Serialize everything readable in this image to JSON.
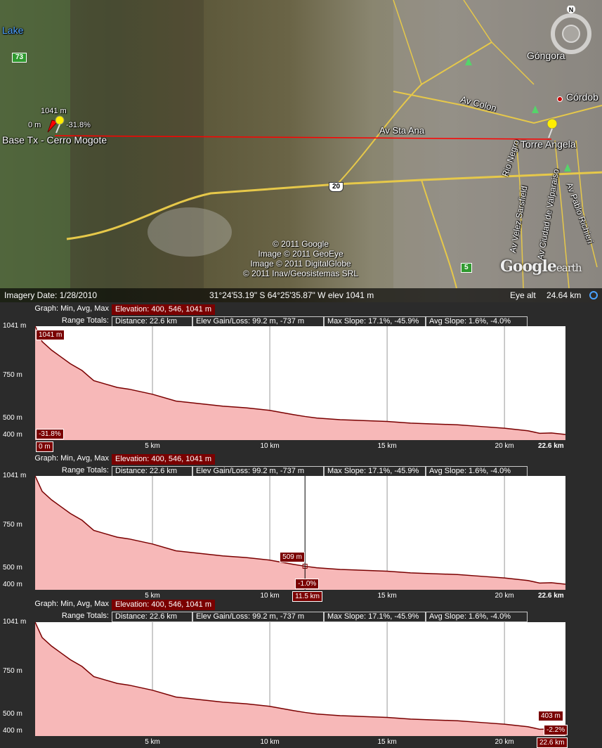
{
  "map": {
    "labels": {
      "lake": "Lake",
      "route73": "73",
      "route20": "20",
      "route5": "5",
      "gongora": "Góngora",
      "cordoba": "Córdob",
      "av_colon": "Av Colon",
      "av_sta_ana": "Av Sta Ana",
      "rio_negro": "Rio Negro",
      "av_velez": "Av Velez Sarsfield",
      "av_valparaiso": "Av Ciudad de Valparaiso",
      "av_richieri": "Av Pablo Richieri",
      "torre_angela": "Torre Angela",
      "base_tx": "Base Tx - Cerro Mogote",
      "start_elev": "1041 m",
      "start_dist": "0 m",
      "start_slope": "-31.8%",
      "compass_n": "N"
    },
    "copyright": [
      "© 2011 Google",
      "Image © 2011 GeoEye",
      "Image © 2011 DigitalGlobe",
      "© 2011 Inav/Geosistemas SRL"
    ],
    "logo": "Google",
    "logo_suffix": "earth",
    "colors": {
      "route_line": "#ff0000",
      "road": "#e6c84a"
    }
  },
  "status": {
    "imagery_date": "Imagery Date: 1/28/2010",
    "coords": "31°24'53.19\" S   64°25'35.87\" W  elev  1041 m",
    "eye_alt_label": "Eye alt",
    "eye_alt_value": "24.64 km"
  },
  "profile": {
    "graph_label": "Graph: Min, Avg, Max",
    "elevation": "Elevation: 400, 546, 1041 m",
    "range_label": "Range Totals:",
    "distance": "Distance: 22.6 km",
    "gain_loss": "Elev Gain/Loss: 99.2 m, -737 m",
    "max_slope": "Max Slope: 17.1%, -45.9%",
    "avg_slope": "Avg Slope: 1.6%, -4.0%",
    "y_ticks": [
      "1041 m",
      "750 m",
      "500 m",
      "400 m"
    ],
    "x_ticks": [
      "5 km",
      "10 km",
      "15 km",
      "20 km"
    ],
    "x_end": "22.6 km",
    "panel1": {
      "elev": "1041 m",
      "slope": "-31.8%",
      "dist": "0 m"
    },
    "panel2": {
      "elev": "509 m",
      "slope": "-1.0%",
      "dist": "11.5 km"
    },
    "panel3": {
      "elev": "403 m",
      "slope": "-2.2%",
      "dist": "22.6 km"
    }
  },
  "chart_data": {
    "type": "area",
    "xlabel": "",
    "ylabel": "",
    "xlim": [
      0,
      22.6
    ],
    "ylim": [
      370,
      1041
    ],
    "x": [
      0,
      0.3,
      0.7,
      1.1,
      1.5,
      2.0,
      2.5,
      3.0,
      3.5,
      4.0,
      4.5,
      5.0,
      6.0,
      7.0,
      8.0,
      9.0,
      10.0,
      11.0,
      11.5,
      12.0,
      13.0,
      14.0,
      15.0,
      16.0,
      17.0,
      18.0,
      19.0,
      20.0,
      21.0,
      21.5,
      22.0,
      22.6
    ],
    "y": [
      1041,
      950,
      900,
      860,
      820,
      780,
      720,
      700,
      680,
      670,
      655,
      640,
      600,
      585,
      570,
      560,
      545,
      520,
      509,
      500,
      490,
      485,
      480,
      470,
      465,
      460,
      450,
      440,
      425,
      410,
      412,
      403
    ],
    "colors": {
      "fill": "#f7b8b8",
      "line": "#7a0000"
    }
  }
}
